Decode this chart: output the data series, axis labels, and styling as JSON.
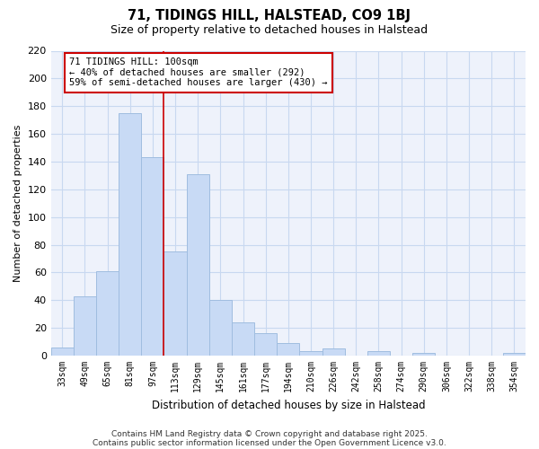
{
  "title": "71, TIDINGS HILL, HALSTEAD, CO9 1BJ",
  "subtitle": "Size of property relative to detached houses in Halstead",
  "xlabel": "Distribution of detached houses by size in Halstead",
  "ylabel": "Number of detached properties",
  "bar_color": "#c8daf5",
  "bar_edge_color": "#a0bde0",
  "grid_color": "#c8d8f0",
  "background_color": "#eef2fb",
  "categories": [
    "33sqm",
    "49sqm",
    "65sqm",
    "81sqm",
    "97sqm",
    "113sqm",
    "129sqm",
    "145sqm",
    "161sqm",
    "177sqm",
    "194sqm",
    "210sqm",
    "226sqm",
    "242sqm",
    "258sqm",
    "274sqm",
    "290sqm",
    "306sqm",
    "322sqm",
    "338sqm",
    "354sqm"
  ],
  "values": [
    6,
    43,
    61,
    175,
    143,
    75,
    131,
    40,
    24,
    16,
    9,
    3,
    5,
    0,
    3,
    0,
    2,
    0,
    0,
    0,
    2
  ],
  "ylim": [
    0,
    220
  ],
  "yticks": [
    0,
    20,
    40,
    60,
    80,
    100,
    120,
    140,
    160,
    180,
    200,
    220
  ],
  "property_line_index": 4,
  "property_line_color": "#cc0000",
  "annotation_line1": "71 TIDINGS HILL: 100sqm",
  "annotation_line2": "← 40% of detached houses are smaller (292)",
  "annotation_line3": "59% of semi-detached houses are larger (430) →",
  "annotation_box_edge": "#cc0000",
  "footer1": "Contains HM Land Registry data © Crown copyright and database right 2025.",
  "footer2": "Contains public sector information licensed under the Open Government Licence v3.0."
}
